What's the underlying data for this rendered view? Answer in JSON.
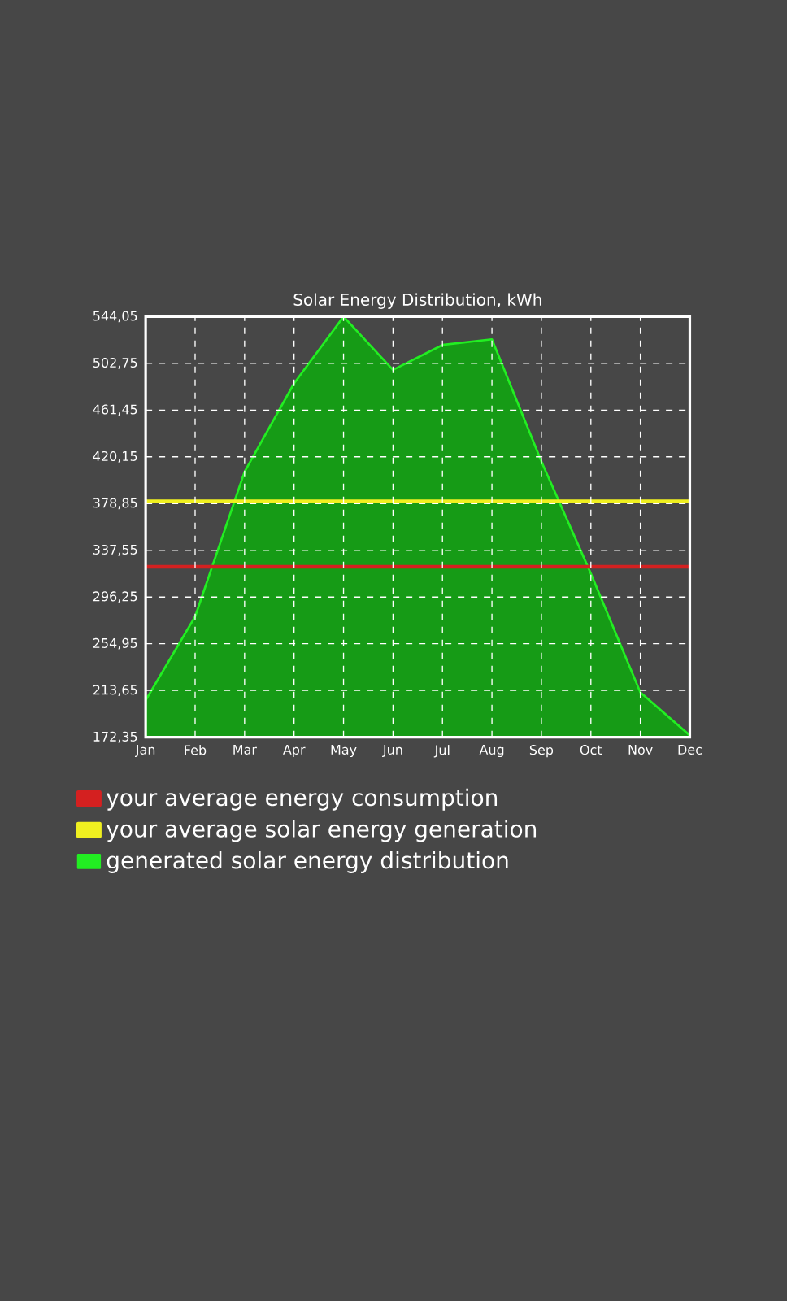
{
  "chart_data": {
    "type": "area",
    "title": "Solar Energy Distribution, kWh",
    "categories": [
      "Jan",
      "Feb",
      "Mar",
      "Apr",
      "May",
      "Jun",
      "Jul",
      "Aug",
      "Sep",
      "Oct",
      "Nov",
      "Dec"
    ],
    "series": [
      {
        "name": "your average energy consumption",
        "type": "line",
        "color": "#d42020",
        "values": [
          323,
          323,
          323,
          323,
          323,
          323,
          323,
          323,
          323,
          323,
          323,
          323
        ]
      },
      {
        "name": "your average solar energy generation",
        "type": "line",
        "color": "#f0f020",
        "values": [
          381,
          381,
          381,
          381,
          381,
          381,
          381,
          381,
          381,
          381,
          381,
          381
        ]
      },
      {
        "name": "generated solar energy distribution",
        "color": "#22ee22",
        "values": [
          205,
          279,
          407,
          485,
          544,
          497,
          519,
          524,
          416,
          317,
          212,
          174
        ]
      }
    ],
    "ylim": [
      172.35,
      544.05
    ],
    "yticks": [
      {
        "value": 172.35,
        "label": "172,35"
      },
      {
        "value": 213.65,
        "label": "213,65"
      },
      {
        "value": 254.95,
        "label": "254,95"
      },
      {
        "value": 296.25,
        "label": "296,25"
      },
      {
        "value": 337.55,
        "label": "337,55"
      },
      {
        "value": 378.85,
        "label": "378,85"
      },
      {
        "value": 420.15,
        "label": "420,15"
      },
      {
        "value": 461.45,
        "label": "461,45"
      },
      {
        "value": 502.75,
        "label": "502,75"
      },
      {
        "value": 544.05,
        "label": "544,05"
      }
    ],
    "grid": true,
    "legend": "bottom"
  }
}
